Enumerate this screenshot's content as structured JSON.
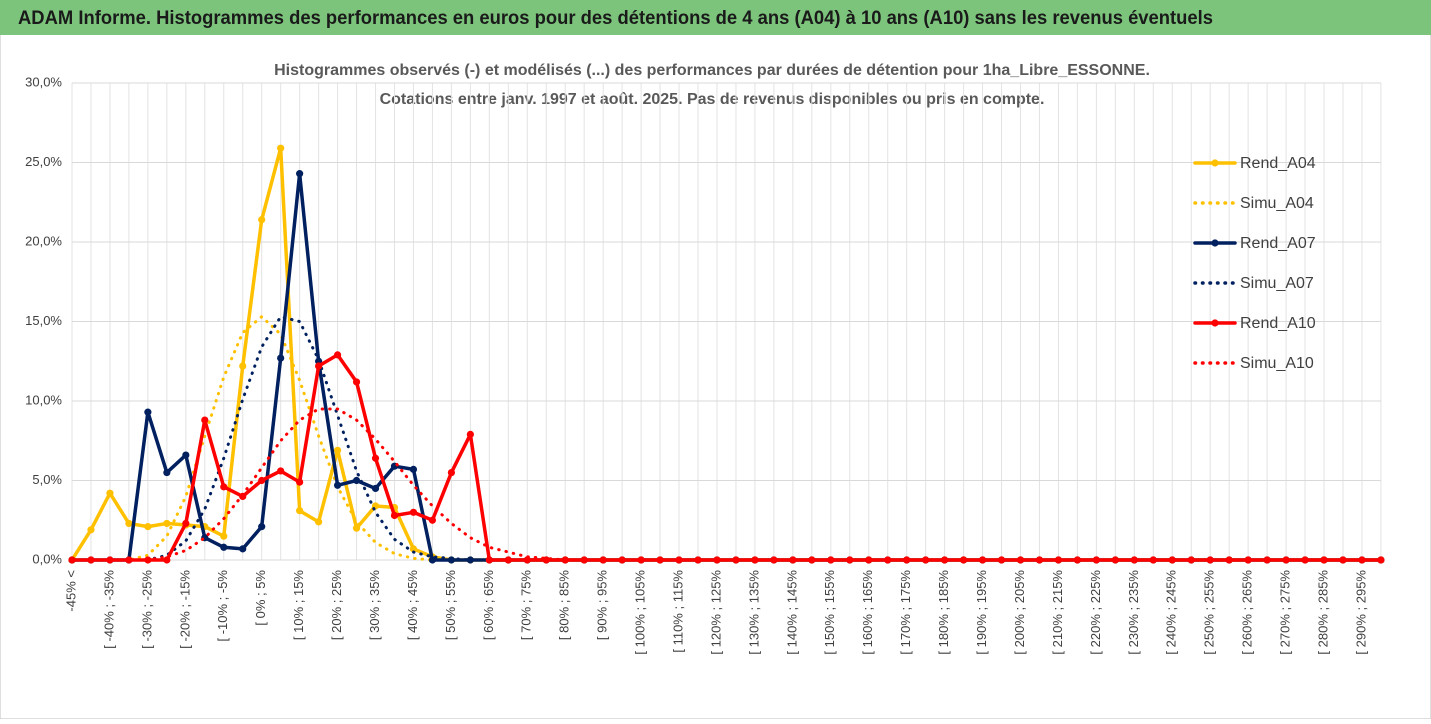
{
  "header": {
    "title": "ADAM Informe. Histogrammes des performances en euros pour des détentions de 4 ans (A04) à 10 ans (A10) sans les revenus éventuels"
  },
  "chart_data": {
    "type": "line",
    "title": "Histogrammes observés (-) et modélisés (...) des performances par durées de détention pour 1ha_Libre_ESSONNE.",
    "subtitle": "Cotations entre janv. 1997 et août. 2025. Pas de revenus disponibles ou pris en compte.",
    "categories": [
      "-45% <",
      null,
      "[ -40% ; -35%",
      null,
      "[ -30% ; -25%",
      null,
      "[ -20% ; -15%",
      null,
      "[ -10% ; -5%",
      null,
      "[ 0% ; 5%",
      null,
      "[ 10% ; 15%",
      null,
      "[ 20% ; 25%",
      null,
      "[ 30% ; 35%",
      null,
      "[ 40% ; 45%",
      null,
      "[ 50% ; 55%",
      null,
      "[ 60% ; 65%",
      null,
      "[ 70% ; 75%",
      null,
      "[ 80% ; 85%",
      null,
      "[ 90% ; 95%",
      null,
      "[ 100% ; 105%",
      null,
      "[ 110% ; 115%",
      null,
      "[ 120% ; 125%",
      null,
      "[ 130% ; 135%",
      null,
      "[ 140% ; 145%",
      null,
      "[ 150% ; 155%",
      null,
      "[ 160% ; 165%",
      null,
      "[ 170% ; 175%",
      null,
      "[ 180% ; 185%",
      null,
      "[ 190% ; 195%",
      null,
      "[ 200% ; 205%",
      null,
      "[ 210% ; 215%",
      null,
      "[ 220% ; 225%",
      null,
      "[ 230% ; 235%",
      null,
      "[ 240% ; 245%",
      null,
      "[ 250% ; 255%",
      null,
      "[ 260% ; 265%",
      null,
      "[ 270% ; 275%",
      null,
      "[ 280% ; 285%",
      null,
      "[ 290% ; 295%",
      null
    ],
    "series": [
      {
        "name": "Rend_A04",
        "color": "#ffc000",
        "dash": "solid",
        "marker": true,
        "values": [
          0,
          1.9,
          4.2,
          2.3,
          2.1,
          2.3,
          2.2,
          2.1,
          1.5,
          12.2,
          21.4,
          25.9,
          3.1,
          2.4,
          6.9,
          2.0,
          3.4,
          3.3,
          0.7,
          0.2,
          0,
          0,
          0,
          0,
          0,
          0,
          0,
          0,
          0,
          0,
          0,
          0,
          0,
          0,
          0,
          0,
          0,
          0,
          0,
          0,
          0,
          0,
          0,
          0,
          0,
          0,
          0,
          0,
          0,
          0,
          0,
          0,
          0,
          0,
          0,
          0,
          0,
          0,
          0,
          0,
          0,
          0,
          0,
          0,
          0,
          0,
          0,
          0,
          0,
          0
        ]
      },
      {
        "name": "Simu_A04",
        "color": "#ffc000",
        "dash": "dotted",
        "marker": false,
        "values": [
          0,
          0,
          0,
          0,
          0.3,
          1.5,
          4.0,
          7.8,
          11.5,
          14.3,
          15.3,
          14.2,
          11.3,
          7.8,
          4.6,
          2.4,
          1.1,
          0.4,
          0.1,
          0,
          0,
          0,
          0,
          0,
          0,
          0,
          0,
          0,
          0,
          0,
          0,
          0,
          0,
          0,
          0,
          0,
          0,
          0,
          0,
          0,
          0,
          0,
          0,
          0,
          0,
          0,
          0,
          0,
          0,
          0,
          0,
          0,
          0,
          0,
          0,
          0,
          0,
          0,
          0,
          0,
          0,
          0,
          0,
          0,
          0,
          0,
          0,
          0,
          0,
          0
        ]
      },
      {
        "name": "Rend_A07",
        "color": "#002060",
        "dash": "solid",
        "marker": true,
        "values": [
          0,
          0,
          0,
          0,
          9.3,
          5.5,
          6.6,
          1.4,
          0.8,
          0.7,
          2.1,
          12.7,
          24.3,
          12.5,
          4.7,
          5.0,
          4.5,
          5.9,
          5.7,
          0,
          0,
          0,
          0,
          0,
          0,
          0,
          0,
          0,
          0,
          0,
          0,
          0,
          0,
          0,
          0,
          0,
          0,
          0,
          0,
          0,
          0,
          0,
          0,
          0,
          0,
          0,
          0,
          0,
          0,
          0,
          0,
          0,
          0,
          0,
          0,
          0,
          0,
          0,
          0,
          0,
          0,
          0,
          0,
          0,
          0,
          0,
          0,
          0,
          0,
          0
        ]
      },
      {
        "name": "Simu_A07",
        "color": "#002060",
        "dash": "dotted",
        "marker": false,
        "values": [
          0,
          0,
          0,
          0,
          0,
          0.3,
          1.2,
          3.2,
          6.4,
          10.1,
          13.4,
          15.3,
          15.0,
          12.6,
          9.1,
          5.6,
          3.0,
          1.3,
          0.5,
          0.2,
          0.1,
          0,
          0,
          0,
          0,
          0,
          0,
          0,
          0,
          0,
          0,
          0,
          0,
          0,
          0,
          0,
          0,
          0,
          0,
          0,
          0,
          0,
          0,
          0,
          0,
          0,
          0,
          0,
          0,
          0,
          0,
          0,
          0,
          0,
          0,
          0,
          0,
          0,
          0,
          0,
          0,
          0,
          0,
          0,
          0,
          0,
          0,
          0,
          0,
          0
        ]
      },
      {
        "name": "Rend_A10",
        "color": "#ff0000",
        "dash": "solid",
        "marker": true,
        "values": [
          0,
          0,
          0,
          0,
          0,
          0,
          2.3,
          8.8,
          4.6,
          4.0,
          5.0,
          5.6,
          4.9,
          12.2,
          12.9,
          11.2,
          6.4,
          2.8,
          3.0,
          2.5,
          5.5,
          7.9,
          0,
          0,
          0,
          0,
          0,
          0,
          0,
          0,
          0,
          0,
          0,
          0,
          0,
          0,
          0,
          0,
          0,
          0,
          0,
          0,
          0,
          0,
          0,
          0,
          0,
          0,
          0,
          0,
          0,
          0,
          0,
          0,
          0,
          0,
          0,
          0,
          0,
          0,
          0,
          0,
          0,
          0,
          0,
          0,
          0,
          0,
          0,
          0
        ]
      },
      {
        "name": "Simu_A10",
        "color": "#ff0000",
        "dash": "dotted",
        "marker": false,
        "values": [
          0,
          0,
          0,
          0,
          0,
          0.2,
          0.6,
          1.4,
          2.6,
          4.1,
          5.8,
          7.5,
          8.8,
          9.5,
          9.5,
          8.8,
          7.6,
          6.2,
          4.7,
          3.4,
          2.3,
          1.4,
          0.8,
          0.5,
          0.2,
          0.1,
          0,
          0,
          0,
          0,
          0,
          0,
          0,
          0,
          0,
          0,
          0,
          0,
          0,
          0,
          0,
          0,
          0,
          0,
          0,
          0,
          0,
          0,
          0,
          0,
          0,
          0,
          0,
          0,
          0,
          0,
          0,
          0,
          0,
          0,
          0,
          0,
          0,
          0,
          0,
          0,
          0,
          0,
          0,
          0
        ]
      }
    ],
    "ylim": [
      0,
      30
    ],
    "yticks": [
      {
        "value": 0,
        "label": "0,0%"
      },
      {
        "value": 5,
        "label": "5,0%"
      },
      {
        "value": 10,
        "label": "10,0%"
      },
      {
        "value": 15,
        "label": "15,0%"
      },
      {
        "value": 20,
        "label": "20,0%"
      },
      {
        "value": 25,
        "label": "25,0%"
      },
      {
        "value": 30,
        "label": "30,0%"
      }
    ],
    "grid": true,
    "legend": "right"
  }
}
